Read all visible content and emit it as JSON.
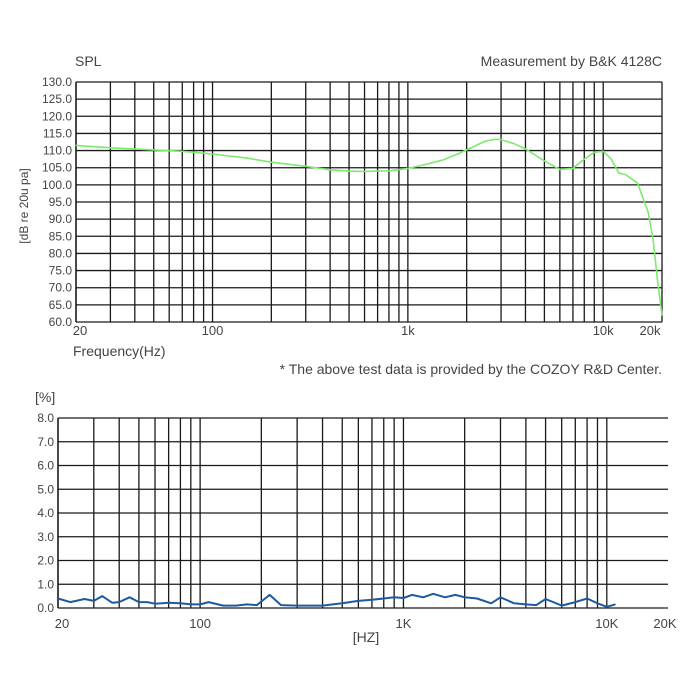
{
  "colors": {
    "grid": "#1a1a1a",
    "fr_line": "#7dea6e",
    "thd_line": "#1d5aa0",
    "text": "#444444"
  },
  "chart_data": [
    {
      "type": "line",
      "title": "SPL",
      "subtitle": "Measurement by B&K 4128C",
      "xlabel": "Frequency(Hz)",
      "ylabel": "[dB re 20u pa]",
      "xscale": "log",
      "xlim": [
        20,
        20000
      ],
      "ylim": [
        60,
        130
      ],
      "grid": true,
      "x_tick_labels": [
        {
          "value": 20,
          "label": "20"
        },
        {
          "value": 100,
          "label": "100"
        },
        {
          "value": 1000,
          "label": "1k"
        },
        {
          "value": 10000,
          "label": "10k"
        },
        {
          "value": 20000,
          "label": "20k"
        }
      ],
      "y_tick_labels": [
        "130.0",
        "125.0",
        "120.0",
        "115.0",
        "110.0",
        "105.0",
        "100.0",
        "95.0",
        "90.0",
        "85.0",
        "80.0",
        "75.0",
        "70.0",
        "65.0",
        "60.0"
      ],
      "annotation": "* The above test data is provided by the COZOY R&D Center.",
      "series": [
        {
          "x": [
            20,
            30,
            50,
            70,
            100,
            150,
            200,
            300,
            400,
            500,
            600,
            700,
            800,
            1000,
            1200,
            1500,
            1800,
            2000,
            2500,
            2800,
            3000,
            3500,
            4000,
            5000,
            6000,
            7000,
            8000,
            9000,
            10000,
            11000,
            12000,
            13000,
            15000,
            17000,
            18000,
            19000,
            20000
          ],
          "y": [
            111.5,
            110.8,
            110.2,
            109.8,
            109.0,
            107.8,
            106.6,
            105.4,
            104.4,
            104.0,
            103.9,
            104.0,
            104.1,
            104.8,
            105.8,
            107.2,
            109.0,
            110.2,
            112.8,
            113.3,
            113.2,
            112.0,
            110.5,
            107.0,
            104.5,
            104.8,
            107.5,
            109.5,
            109.8,
            107.5,
            103.5,
            103.0,
            100.5,
            92.0,
            84.0,
            72.0,
            62.0
          ]
        }
      ]
    },
    {
      "type": "line",
      "ylabel": "[%]",
      "xlabel": "[HZ]",
      "xscale": "log",
      "xlim": [
        20,
        20000
      ],
      "ylim": [
        0,
        8
      ],
      "grid": true,
      "x_tick_labels": [
        {
          "value": 20,
          "label": "20"
        },
        {
          "value": 100,
          "label": "100"
        },
        {
          "value": 1000,
          "label": "1K"
        },
        {
          "value": 10000,
          "label": "10K"
        },
        {
          "value": 20000,
          "label": "20K"
        }
      ],
      "y_tick_labels": [
        "8.0",
        "7.0",
        "6.0",
        "5.0",
        "4.0",
        "3.0",
        "2.0",
        "1.0",
        "0.0"
      ],
      "series": [
        {
          "x": [
            20,
            23,
            27,
            30,
            33,
            37,
            40,
            45,
            50,
            55,
            60,
            70,
            80,
            90,
            100,
            110,
            130,
            150,
            170,
            190,
            220,
            250,
            300,
            350,
            400,
            500,
            600,
            700,
            800,
            900,
            1000,
            1100,
            1250,
            1400,
            1600,
            1800,
            2000,
            2300,
            2700,
            3000,
            3500,
            4000,
            4500,
            5000,
            6000,
            7000,
            8000,
            9000,
            10000,
            11000
          ],
          "y": [
            0.4,
            0.25,
            0.38,
            0.3,
            0.5,
            0.22,
            0.25,
            0.45,
            0.25,
            0.25,
            0.18,
            0.22,
            0.2,
            0.15,
            0.15,
            0.25,
            0.1,
            0.1,
            0.15,
            0.12,
            0.55,
            0.12,
            0.1,
            0.1,
            0.1,
            0.2,
            0.3,
            0.35,
            0.4,
            0.45,
            0.42,
            0.55,
            0.45,
            0.6,
            0.45,
            0.55,
            0.45,
            0.4,
            0.2,
            0.45,
            0.2,
            0.15,
            0.12,
            0.38,
            0.1,
            0.25,
            0.4,
            0.2,
            0.05,
            0.15
          ]
        }
      ]
    }
  ]
}
